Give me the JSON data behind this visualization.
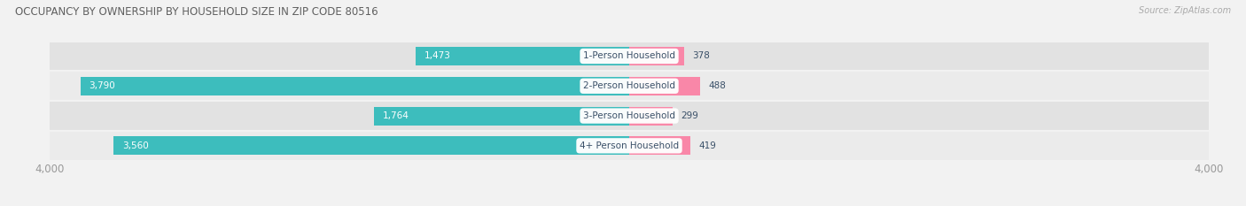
{
  "title": "OCCUPANCY BY OWNERSHIP BY HOUSEHOLD SIZE IN ZIP CODE 80516",
  "source": "Source: ZipAtlas.com",
  "categories": [
    "4+ Person Household",
    "3-Person Household",
    "2-Person Household",
    "1-Person Household"
  ],
  "owner_values": [
    3560,
    1764,
    3790,
    1473
  ],
  "renter_values": [
    419,
    299,
    488,
    378
  ],
  "owner_color": "#3dbdbd",
  "renter_color": "#f987a8",
  "axis_max": 4000,
  "label_color": "#3a5068",
  "title_color": "#606060",
  "source_color": "#aaaaaa",
  "axis_label_color": "#999999",
  "row_colors": [
    "#ebebeb",
    "#e2e2e2",
    "#ebebeb",
    "#e2e2e2"
  ],
  "separator_color": "#ffffff",
  "fig_bg": "#f2f2f2"
}
